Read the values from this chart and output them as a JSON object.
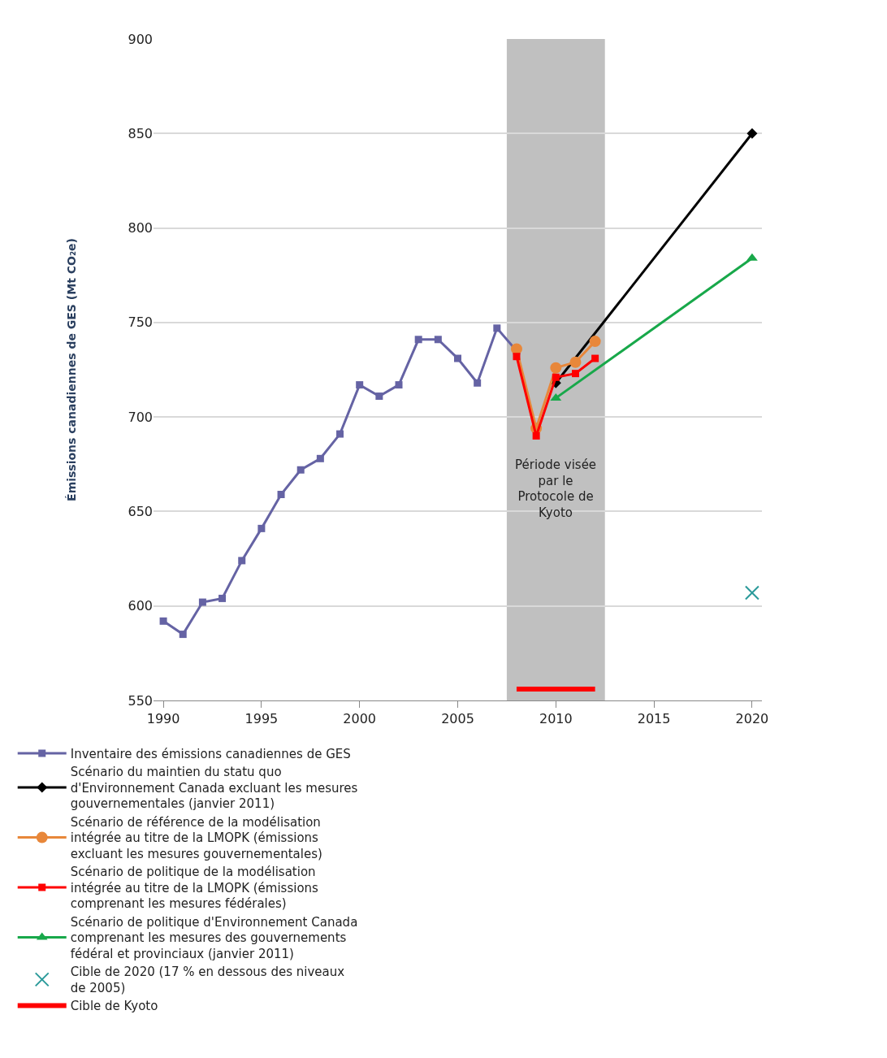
{
  "chart_data": {
    "type": "line",
    "ylabel": "Émissions canadiennes de GES (Mt CO₂e)",
    "xlim": [
      1989.5,
      2020.5
    ],
    "xticks": [
      1990,
      1995,
      2000,
      2005,
      2010,
      2015,
      2020
    ],
    "ylim": [
      550,
      900
    ],
    "yticks": [
      550,
      600,
      650,
      700,
      750,
      800,
      850,
      900
    ],
    "grid": "y",
    "legend": "bottom",
    "bands": [
      {
        "axis": "x",
        "from": 2007.5,
        "to": 2012.5,
        "label": "Période visée par le Protocole de Kyoto",
        "color": "#c0c0c0"
      }
    ],
    "series": [
      {
        "name": "Inventaire des émissions canadiennes de GES",
        "color": "#6563a4",
        "marker": "square",
        "x": [
          1990,
          1991,
          1992,
          1993,
          1994,
          1995,
          1996,
          1997,
          1998,
          1999,
          2000,
          2001,
          2002,
          2003,
          2004,
          2005,
          2006,
          2007,
          2008
        ],
        "values": [
          592,
          585,
          602,
          604,
          624,
          641,
          659,
          672,
          678,
          691,
          717,
          711,
          717,
          741,
          741,
          731,
          718,
          747,
          735
        ]
      },
      {
        "name": "Scénario du maintien du statu quo d'Environnement Canada excluant les mesures gouvernementales (janvier 2011)",
        "color": "#000000",
        "marker": "diamond",
        "x": [
          2010,
          2020
        ],
        "values": [
          718,
          850
        ]
      },
      {
        "name": "Scénario de référence de la modélisation intégrée au titre de la LMOPK (émissions excluant les mesures gouvernementales)",
        "color": "#e8873a",
        "marker": "circle",
        "x": [
          2008,
          2009,
          2010,
          2011,
          2012
        ],
        "values": [
          736,
          694,
          726,
          729,
          740
        ]
      },
      {
        "name": "Scénario de politique de la modélisation intégrée au titre de la LMOPK (émissions comprenant les mesures fédérales)",
        "color": "#ff0000",
        "marker": "square",
        "x": [
          2008,
          2009,
          2010,
          2011,
          2012
        ],
        "values": [
          732,
          690,
          721,
          723,
          731
        ]
      },
      {
        "name": "Scénario de politique d'Environnement Canada comprenant les mesures des gouvernements fédéral et provinciaux (janvier 2011)",
        "color": "#18a84a",
        "marker": "triangle",
        "x": [
          2010,
          2020
        ],
        "values": [
          710,
          784
        ]
      },
      {
        "name": "Cible de 2020 (17 % en dessous des niveaux de 2005)",
        "color": "#2a9a9a",
        "type": "scatter",
        "marker": "cross",
        "x": [
          2020
        ],
        "values": [
          607
        ]
      },
      {
        "name": "Cible de Kyoto",
        "color": "#ff0000",
        "marker": "none",
        "x": [
          2008,
          2012
        ],
        "values": [
          556,
          556
        ]
      }
    ]
  }
}
